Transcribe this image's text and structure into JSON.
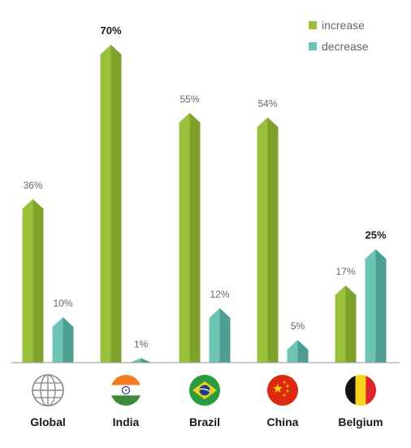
{
  "chart_data": {
    "type": "bar",
    "categories": [
      "Global",
      "India",
      "Brazil",
      "China",
      "Belgium"
    ],
    "series": [
      {
        "name": "increase",
        "values": [
          36,
          70,
          55,
          54,
          17
        ],
        "color": "#99c13a",
        "shade": "#7fa22c",
        "labels": [
          "36%",
          "70%",
          "55%",
          "54%",
          "17%"
        ]
      },
      {
        "name": "decrease",
        "values": [
          10,
          1,
          12,
          5,
          25
        ],
        "color": "#6cc4b5",
        "shade": "#4e9d91",
        "labels": [
          "10%",
          "1%",
          "12%",
          "5%",
          "25%"
        ]
      }
    ],
    "bold_labels": [
      [
        false,
        true,
        false,
        false,
        false
      ],
      [
        false,
        false,
        false,
        false,
        true
      ]
    ],
    "ylim": [
      0,
      70
    ],
    "grid": false,
    "legend_position": "top-right",
    "xlabel": "",
    "ylabel": "",
    "title": ""
  },
  "flags": [
    {
      "name": "globe-icon"
    },
    {
      "name": "india-flag-icon"
    },
    {
      "name": "brazil-flag-icon"
    },
    {
      "name": "china-flag-icon"
    },
    {
      "name": "belgium-flag-icon"
    }
  ]
}
